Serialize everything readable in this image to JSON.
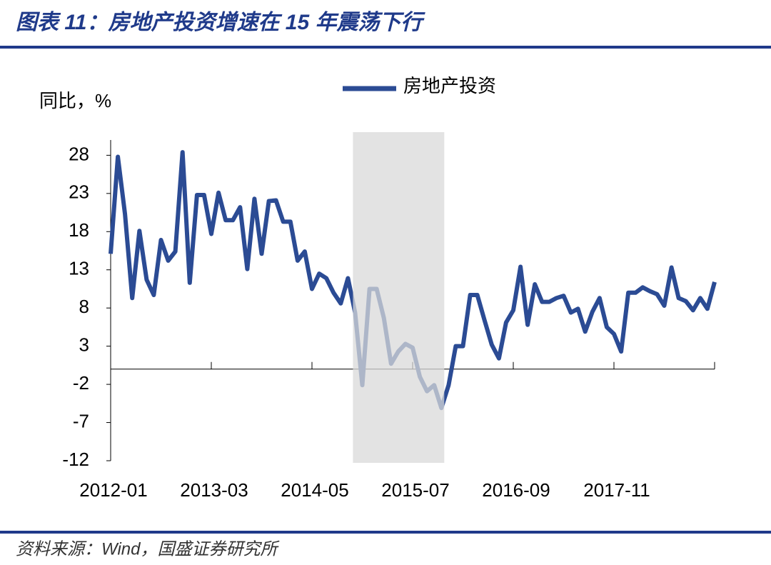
{
  "header": {
    "title": "图表 11：房地产投资增速在 15 年震荡下行"
  },
  "chart_data": {
    "type": "line",
    "y_label": "同比，%",
    "categories": [
      "2012-01",
      null,
      null,
      null,
      null,
      null,
      null,
      null,
      null,
      null,
      null,
      null,
      null,
      null,
      "2013-03",
      null,
      null,
      null,
      null,
      null,
      null,
      null,
      null,
      null,
      null,
      null,
      null,
      null,
      "2014-05",
      null,
      null,
      null,
      null,
      null,
      null,
      null,
      null,
      null,
      null,
      null,
      null,
      null,
      "2015-07",
      null,
      null,
      null,
      null,
      null,
      null,
      null,
      null,
      null,
      null,
      null,
      null,
      null,
      "2016-09",
      null,
      null,
      null,
      null,
      null,
      null,
      null,
      null,
      null,
      null,
      null,
      null,
      null,
      "2017-11",
      null,
      null,
      null,
      null,
      null,
      null,
      null,
      null,
      null,
      null,
      null,
      null,
      null,
      null
    ],
    "series": [
      {
        "name": "房地产投资",
        "color": "#2b4b94",
        "values": [
          15.1,
          27.8,
          20.3,
          9.3,
          18.1,
          11.7,
          9.7,
          16.9,
          14.2,
          15.4,
          28.4,
          11.3,
          22.8,
          22.8,
          17.7,
          23.1,
          19.5,
          19.5,
          21.2,
          13.1,
          22.3,
          15.1,
          22.0,
          22.1,
          19.3,
          19.3,
          14.2,
          15.4,
          10.5,
          12.5,
          11.9,
          10.0,
          8.6,
          11.9,
          7.4,
          -2.1,
          10.5,
          10.5,
          6.7,
          0.7,
          2.3,
          3.3,
          2.8,
          -1.0,
          -2.9,
          -2.1,
          -5.1,
          -2.1,
          3.0,
          3.0,
          9.7,
          9.7,
          6.4,
          3.2,
          1.4,
          6.1,
          7.7,
          13.4,
          5.8,
          11.1,
          8.8,
          8.8,
          9.3,
          9.6,
          7.4,
          7.9,
          4.9,
          7.5,
          9.3,
          5.5,
          4.6,
          2.3,
          10.0,
          10.0,
          10.7,
          10.2,
          9.8,
          8.3,
          13.3,
          9.3,
          8.9,
          7.7,
          9.3,
          7.9,
          11.4
        ]
      }
    ],
    "ylim": [
      -12,
      30
    ],
    "yticks": [
      -12,
      -7,
      -2,
      3,
      8,
      13,
      18,
      23,
      28
    ],
    "x_tick_every": 14,
    "highlight": [
      33.7,
      46.4
    ],
    "highlight_color": "#d9d9d9"
  },
  "footer": {
    "source": "资料来源：Wind，国盛证券研究所"
  }
}
